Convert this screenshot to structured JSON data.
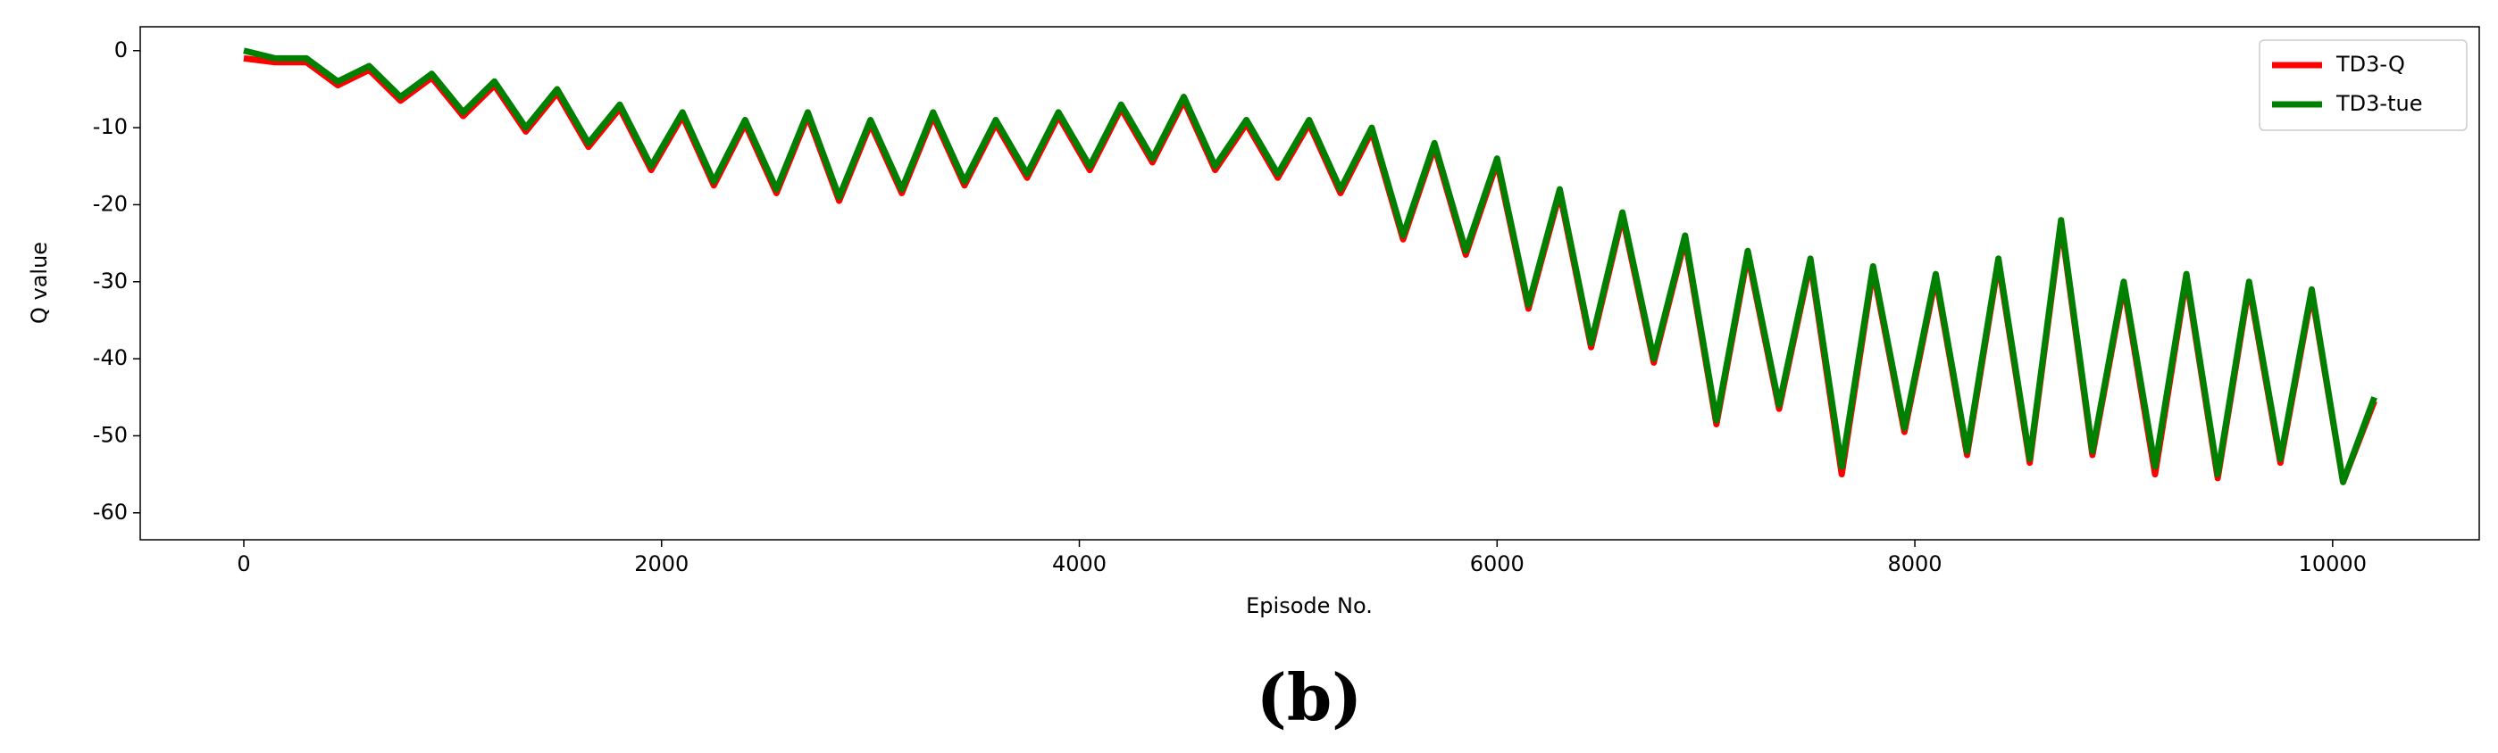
{
  "chart_data": {
    "type": "line",
    "xlabel": "Episode No.",
    "ylabel": "Q value",
    "x": [
      0,
      150,
      300,
      450,
      600,
      750,
      900,
      1050,
      1200,
      1350,
      1500,
      1650,
      1800,
      1950,
      2100,
      2250,
      2400,
      2550,
      2700,
      2850,
      3000,
      3150,
      3300,
      3450,
      3600,
      3750,
      3900,
      4050,
      4200,
      4350,
      4500,
      4650,
      4800,
      4950,
      5100,
      5250,
      5400,
      5550,
      5700,
      5850,
      6000,
      6150,
      6300,
      6450,
      6600,
      6750,
      6900,
      7050,
      7200,
      7350,
      7500,
      7650,
      7800,
      7950,
      8100,
      8250,
      8400,
      8550,
      8700,
      8850,
      9000,
      9150,
      9300,
      9450,
      9600,
      9750,
      9900,
      10050,
      10200
    ],
    "series": [
      {
        "name": "TD3-Q",
        "color": "#ff0000",
        "values": [
          -1,
          -1.5,
          -1.5,
          -4.5,
          -2.5,
          -6.5,
          -3.5,
          -8.5,
          -4.5,
          -10.5,
          -5.5,
          -12.5,
          -7.5,
          -15.5,
          -8.5,
          -17.5,
          -9.5,
          -18.5,
          -8.5,
          -19.5,
          -9.5,
          -18.5,
          -8.5,
          -17.5,
          -9.5,
          -16.5,
          -8.5,
          -15.5,
          -7.5,
          -14.5,
          -6.5,
          -15.5,
          -9.5,
          -16.5,
          -9.5,
          -18.5,
          -10.5,
          -24.5,
          -12.5,
          -26.5,
          -14.5,
          -33.5,
          -18.5,
          -38.5,
          -21.5,
          -40.5,
          -24.5,
          -48.5,
          -26.5,
          -46.5,
          -27.5,
          -55,
          -28.5,
          -49.5,
          -29.5,
          -52.5,
          -27.5,
          -53.5,
          -22.5,
          -52.5,
          -30.5,
          -55,
          -29.5,
          -55.5,
          -30.5,
          -53.5,
          -31.5,
          -56,
          -45.5
        ]
      },
      {
        "name": "TD3-tue",
        "color": "#008000",
        "values": [
          0,
          -1,
          -1,
          -4,
          -2,
          -6,
          -3,
          -8,
          -4,
          -10,
          -5,
          -12,
          -7,
          -15,
          -8,
          -17,
          -9,
          -18,
          -8,
          -19,
          -9,
          -18,
          -8,
          -17,
          -9,
          -16,
          -8,
          -15,
          -7,
          -14,
          -6,
          -15,
          -9,
          -16,
          -9,
          -18,
          -10,
          -24,
          -12,
          -26,
          -14,
          -33,
          -18,
          -38,
          -21,
          -40,
          -24,
          -48,
          -26,
          -46,
          -27,
          -54,
          -28,
          -49,
          -29,
          -52,
          -27,
          -53,
          -22,
          -52,
          -30,
          -54,
          -29,
          -55,
          -30,
          -53,
          -31,
          -56,
          -45
        ]
      }
    ],
    "xlim": [
      -496,
      10702
    ],
    "ylim": [
      -63.5,
      3.1
    ],
    "xticks": [
      0,
      2000,
      4000,
      6000,
      8000,
      10000
    ],
    "yticks": [
      0,
      -10,
      -20,
      -30,
      -40,
      -50,
      -60
    ],
    "grid": false,
    "legend": "upper right"
  },
  "caption": "(b)"
}
